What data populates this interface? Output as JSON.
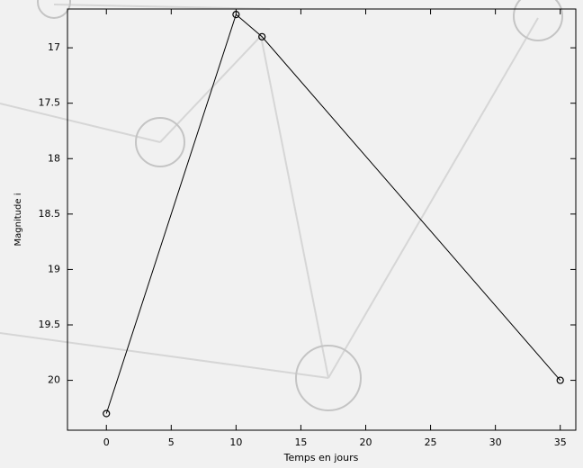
{
  "chart_data": {
    "type": "line",
    "x_label": "Temps en jours",
    "y_label": "Magnitude i",
    "x": [
      0,
      10,
      12,
      35
    ],
    "series": [
      {
        "color": "#000000",
        "values": [
          20.3,
          16.7,
          16.9,
          20.0
        ]
      }
    ],
    "xlim": [
      -3,
      36.2
    ],
    "xticks": [
      0,
      5,
      10,
      15,
      20,
      25,
      30,
      35
    ],
    "ylim": [
      20.45,
      16.65
    ],
    "yticks": [
      17,
      17.5,
      18,
      18.5,
      19,
      19.5,
      20
    ],
    "grid": false
  }
}
